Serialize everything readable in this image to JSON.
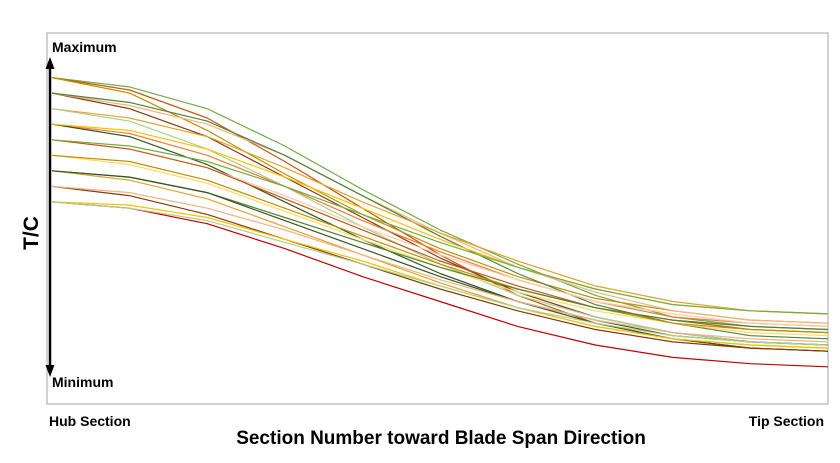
{
  "chart_data": {
    "type": "line",
    "xlabel": "Section Number toward Blade Span Direction",
    "ylabel": "T/C",
    "x_start_label": "Hub Section",
    "x_end_label": "Tip Section",
    "y_max_label": "Maximum",
    "y_min_label": "Minimum",
    "grid": false,
    "legend": "none",
    "x": [
      0,
      1,
      2,
      3,
      4,
      5,
      6,
      7,
      8,
      9,
      10
    ],
    "ylim": [
      0,
      1
    ],
    "series": [
      {
        "color": "#70ad47",
        "values": [
          0.95,
          0.92,
          0.85,
          0.73,
          0.59,
          0.46,
          0.35,
          0.25,
          0.18,
          0.15,
          0.14
        ]
      },
      {
        "color": "#c55a11",
        "values": [
          0.95,
          0.91,
          0.82,
          0.68,
          0.53,
          0.38,
          0.25,
          0.16,
          0.11,
          0.08,
          0.07
        ]
      },
      {
        "color": "#bf9000",
        "values": [
          0.95,
          0.9,
          0.78,
          0.64,
          0.51,
          0.4,
          0.31,
          0.24,
          0.2,
          0.17,
          0.16
        ]
      },
      {
        "color": "#833c0b",
        "values": [
          0.9,
          0.85,
          0.76,
          0.63,
          0.5,
          0.37,
          0.26,
          0.18,
          0.13,
          0.1,
          0.09
        ]
      },
      {
        "color": "#f4b183",
        "values": [
          0.9,
          0.86,
          0.8,
          0.7,
          0.57,
          0.45,
          0.34,
          0.26,
          0.2,
          0.17,
          0.16
        ]
      },
      {
        "color": "#548235",
        "values": [
          0.9,
          0.87,
          0.81,
          0.7,
          0.57,
          0.44,
          0.32,
          0.22,
          0.16,
          0.12,
          0.11
        ]
      },
      {
        "color": "#e2a32b",
        "values": [
          0.85,
          0.82,
          0.76,
          0.66,
          0.55,
          0.45,
          0.36,
          0.28,
          0.23,
          0.2,
          0.19
        ]
      },
      {
        "color": "#a9d18e",
        "values": [
          0.85,
          0.81,
          0.72,
          0.6,
          0.47,
          0.35,
          0.25,
          0.18,
          0.13,
          0.1,
          0.09
        ]
      },
      {
        "color": "#ed7d31",
        "values": [
          0.8,
          0.77,
          0.7,
          0.6,
          0.49,
          0.39,
          0.3,
          0.23,
          0.18,
          0.16,
          0.15
        ]
      },
      {
        "color": "#375623",
        "values": [
          0.8,
          0.76,
          0.67,
          0.55,
          0.43,
          0.32,
          0.23,
          0.16,
          0.11,
          0.08,
          0.07
        ]
      },
      {
        "color": "#ffc000",
        "values": [
          0.8,
          0.78,
          0.72,
          0.63,
          0.53,
          0.43,
          0.34,
          0.27,
          0.22,
          0.2,
          0.19
        ]
      },
      {
        "color": "#f8cbad",
        "values": [
          0.75,
          0.72,
          0.66,
          0.57,
          0.47,
          0.38,
          0.3,
          0.23,
          0.19,
          0.16,
          0.15
        ]
      },
      {
        "color": "#c55a11",
        "values": [
          0.75,
          0.72,
          0.66,
          0.56,
          0.46,
          0.36,
          0.28,
          0.21,
          0.17,
          0.14,
          0.13
        ]
      },
      {
        "color": "#70ad47",
        "values": [
          0.75,
          0.73,
          0.68,
          0.6,
          0.51,
          0.42,
          0.34,
          0.27,
          0.22,
          0.2,
          0.19
        ]
      },
      {
        "color": "#ffd966",
        "values": [
          0.7,
          0.67,
          0.61,
          0.52,
          0.43,
          0.34,
          0.26,
          0.2,
          0.16,
          0.13,
          0.12
        ]
      },
      {
        "color": "#bf9000",
        "values": [
          0.7,
          0.68,
          0.62,
          0.53,
          0.44,
          0.35,
          0.27,
          0.21,
          0.16,
          0.14,
          0.13
        ]
      },
      {
        "color": "#548235",
        "values": [
          0.65,
          0.63,
          0.58,
          0.5,
          0.42,
          0.34,
          0.27,
          0.21,
          0.17,
          0.15,
          0.14
        ]
      },
      {
        "color": "#e2a32b",
        "values": [
          0.65,
          0.62,
          0.56,
          0.47,
          0.38,
          0.29,
          0.21,
          0.15,
          0.11,
          0.09,
          0.08
        ]
      },
      {
        "color": "#375623",
        "values": [
          0.65,
          0.63,
          0.58,
          0.49,
          0.4,
          0.31,
          0.23,
          0.17,
          0.12,
          0.1,
          0.09
        ]
      },
      {
        "color": "#833c0b",
        "values": [
          0.6,
          0.57,
          0.51,
          0.43,
          0.35,
          0.27,
          0.2,
          0.14,
          0.1,
          0.08,
          0.07
        ]
      },
      {
        "color": "#f4b183",
        "values": [
          0.6,
          0.58,
          0.53,
          0.46,
          0.38,
          0.3,
          0.23,
          0.17,
          0.13,
          0.11,
          0.1
        ]
      },
      {
        "color": "#c00000",
        "values": [
          0.55,
          0.53,
          0.48,
          0.4,
          0.31,
          0.23,
          0.15,
          0.09,
          0.05,
          0.03,
          0.02
        ]
      },
      {
        "color": "#ffc000",
        "values": [
          0.55,
          0.54,
          0.5,
          0.43,
          0.36,
          0.28,
          0.21,
          0.15,
          0.11,
          0.09,
          0.08
        ]
      },
      {
        "color": "#a9d18e",
        "values": [
          0.55,
          0.53,
          0.49,
          0.42,
          0.35,
          0.28,
          0.21,
          0.16,
          0.12,
          0.1,
          0.09
        ]
      }
    ]
  }
}
